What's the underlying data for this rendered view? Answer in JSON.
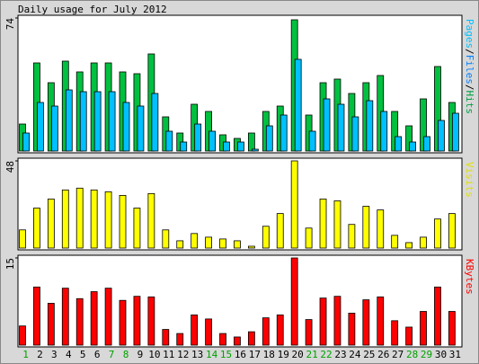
{
  "chart_data": [
    {
      "type": "bar",
      "title": "Daily usage for July 2012",
      "ylim": [
        0,
        74
      ],
      "yticks": [
        74
      ],
      "legend": [
        {
          "text": "Pages",
          "color": "#00c0ff"
        },
        {
          "text": "/",
          "color": "#000000"
        },
        {
          "text": "Files",
          "color": "#0080ff"
        },
        {
          "text": "/",
          "color": "#000000"
        },
        {
          "text": "Hits",
          "color": "#00a040"
        }
      ],
      "series": [
        {
          "name": "Hits",
          "color": "#00c040",
          "values": [
            15,
            49,
            38,
            50,
            44,
            49,
            49,
            44,
            43,
            54,
            19,
            10,
            26,
            22,
            9,
            7,
            10,
            22,
            25,
            73,
            20,
            38,
            40,
            32,
            38,
            42,
            22,
            14,
            29,
            47,
            27
          ]
        },
        {
          "name": "Files",
          "color": "#00c0ff",
          "values": [
            10,
            27,
            25,
            34,
            33,
            33,
            33,
            27,
            25,
            32,
            11,
            5,
            15,
            11,
            5,
            5,
            1,
            14,
            20,
            51,
            11,
            29,
            26,
            19,
            28,
            22,
            8,
            5,
            8,
            17,
            21
          ]
        }
      ]
    },
    {
      "type": "bar",
      "ylim": [
        0,
        48
      ],
      "yticks": [
        48
      ],
      "legend": [
        {
          "text": "Visits",
          "color": "#e0e000"
        }
      ],
      "series": [
        {
          "name": "Visits",
          "color": "#ffff00",
          "values": [
            10,
            22,
            27,
            32,
            33,
            32,
            31,
            29,
            22,
            30,
            10,
            4,
            8,
            6,
            5,
            4,
            1,
            12,
            19,
            48,
            11,
            27,
            26,
            13,
            23,
            21,
            7,
            3,
            6,
            16,
            19
          ]
        }
      ]
    },
    {
      "type": "bar",
      "ylim": [
        0,
        15
      ],
      "yticks": [
        15
      ],
      "legend": [
        {
          "text": "KBytes",
          "color": "#ff0000"
        }
      ],
      "series": [
        {
          "name": "KBytes",
          "color": "#ff0000",
          "values": [
            3.3,
            10,
            7.2,
            9.8,
            8,
            9.2,
            9.8,
            7.7,
            8.4,
            8.3,
            2.7,
            2,
            5.2,
            4.5,
            2,
            1.4,
            2.3,
            4.7,
            5.2,
            15,
            4.4,
            8.1,
            8.4,
            5.5,
            7.8,
            8.3,
            4.2,
            3.1,
            5.8,
            10,
            5.8
          ]
        }
      ],
      "categories": [
        "1",
        "2",
        "3",
        "4",
        "5",
        "6",
        "7",
        "8",
        "9",
        "10",
        "11",
        "12",
        "13",
        "14",
        "15",
        "16",
        "17",
        "18",
        "19",
        "20",
        "21",
        "22",
        "23",
        "24",
        "25",
        "26",
        "27",
        "28",
        "29",
        "30",
        "31"
      ],
      "category_color": "#000000",
      "weekend_color": "#00a000",
      "weekend": [
        0,
        6,
        7,
        13,
        14,
        20,
        21,
        27,
        28
      ]
    }
  ]
}
